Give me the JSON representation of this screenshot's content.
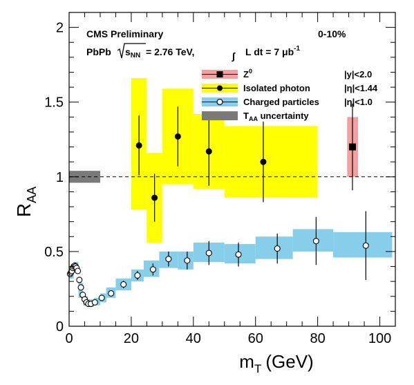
{
  "chart_data": {
    "type": "scatter",
    "title": "",
    "xlabel_main": "m",
    "xlabel_sub": "T",
    "xlabel_unit": "(GeV)",
    "ylabel_main": "R",
    "ylabel_sub": "AA",
    "xlim": [
      0,
      105
    ],
    "ylim": [
      0,
      2.1
    ],
    "x_ticks": [
      "0",
      "20",
      "40",
      "60",
      "80",
      "100"
    ],
    "x_tick_values": [
      0,
      20,
      40,
      60,
      80,
      100
    ],
    "y_ticks": [
      "0",
      "0.5",
      "1",
      "1.5",
      "2"
    ],
    "y_tick_values": [
      0,
      0.5,
      1,
      1.5,
      2
    ],
    "reference_line": 1.0,
    "header": {
      "experiment": "CMS Preliminary",
      "centrality": "0-10%",
      "system": "PbPb",
      "energy_label": "s",
      "energy_sub": "NN",
      "energy_value": " = 2.76 TeV,",
      "lumi_label": "L dt = 7 μb",
      "lumi_sup": "-1"
    },
    "legend_position": "top-right",
    "legend": [
      {
        "name_main": "Z",
        "name_sup": "0",
        "cut": "|y|<2.0",
        "color": "#f08080",
        "marker": "square"
      },
      {
        "name_main": "Isolated photon",
        "cut": "|η|<1.44",
        "color": "#ffff00",
        "marker": "circle"
      },
      {
        "name_main": "Charged particles",
        "cut": "|η|<1.0",
        "color": "#87ceeb",
        "marker": "open-circle"
      },
      {
        "name_main": "T",
        "name_sub": "AA",
        "name_rest": " uncertainty",
        "cut": "",
        "color": "#7a7a7a",
        "marker": "box"
      }
    ],
    "series": [
      {
        "name": "Z0",
        "points": [
          {
            "x": 91.2,
            "y": 1.2,
            "err": 0.29,
            "x0": 89.5,
            "x1": 93.0,
            "sys_lo": 1.0,
            "sys_hi": 1.4
          }
        ],
        "color": "#f08080"
      },
      {
        "name": "Isolated photon",
        "points": [
          {
            "x": 22.5,
            "y": 1.21,
            "err": 0.2,
            "x0": 20,
            "x1": 25,
            "sys_lo": 0.78,
            "sys_hi": 1.66
          },
          {
            "x": 27.5,
            "y": 0.86,
            "err": 0.16,
            "x0": 25,
            "x1": 30,
            "sys_lo": 0.56,
            "sys_hi": 1.16
          },
          {
            "x": 35,
            "y": 1.27,
            "err": 0.2,
            "x0": 30,
            "x1": 40,
            "sys_lo": 0.95,
            "sys_hi": 1.59
          },
          {
            "x": 45,
            "y": 1.17,
            "err": 0.23,
            "x0": 40,
            "x1": 50,
            "sys_lo": 0.92,
            "sys_hi": 1.42
          },
          {
            "x": 62.5,
            "y": 1.1,
            "err": 0.27,
            "x0": 50,
            "x1": 80,
            "sys_lo": 0.86,
            "sys_hi": 1.34
          }
        ],
        "color": "#ffff00"
      },
      {
        "name": "Charged particles",
        "points": [
          {
            "x": 0.3,
            "y": 0.35,
            "err": 0.02
          },
          {
            "x": 0.6,
            "y": 0.36,
            "err": 0.02
          },
          {
            "x": 0.9,
            "y": 0.37,
            "err": 0.02
          },
          {
            "x": 1.2,
            "y": 0.39,
            "err": 0.02
          },
          {
            "x": 1.5,
            "y": 0.4,
            "err": 0.02
          },
          {
            "x": 1.8,
            "y": 0.405,
            "err": 0.02
          },
          {
            "x": 2.1,
            "y": 0.4,
            "err": 0.02
          },
          {
            "x": 2.4,
            "y": 0.39,
            "err": 0.02
          },
          {
            "x": 2.8,
            "y": 0.37,
            "err": 0.02
          },
          {
            "x": 3.3,
            "y": 0.31,
            "err": 0.02
          },
          {
            "x": 3.8,
            "y": 0.26,
            "err": 0.02
          },
          {
            "x": 4.4,
            "y": 0.21,
            "err": 0.02
          },
          {
            "x": 5.0,
            "y": 0.18,
            "err": 0.02
          },
          {
            "x": 5.6,
            "y": 0.16,
            "err": 0.02
          },
          {
            "x": 6.2,
            "y": 0.15,
            "err": 0.02
          },
          {
            "x": 7.0,
            "y": 0.15,
            "err": 0.02
          },
          {
            "x": 8.3,
            "y": 0.16,
            "err": 0.02
          },
          {
            "x": 10.5,
            "y": 0.19,
            "err": 0.02
          },
          {
            "x": 13.5,
            "y": 0.22,
            "err": 0.02
          },
          {
            "x": 17.5,
            "y": 0.28,
            "err": 0.025
          },
          {
            "x": 22,
            "y": 0.34,
            "err": 0.03
          },
          {
            "x": 27,
            "y": 0.38,
            "err": 0.04
          },
          {
            "x": 32,
            "y": 0.45,
            "err": 0.05
          },
          {
            "x": 38,
            "y": 0.44,
            "err": 0.06
          },
          {
            "x": 45,
            "y": 0.49,
            "err": 0.08
          },
          {
            "x": 54.5,
            "y": 0.48,
            "err": 0.08
          },
          {
            "x": 67,
            "y": 0.52,
            "err": 0.1
          },
          {
            "x": 79.5,
            "y": 0.57,
            "err": 0.16
          },
          {
            "x": 95.5,
            "y": 0.54,
            "err": 0.23
          }
        ],
        "sys_band": [
          {
            "x0": 0,
            "x1": 1.5,
            "lo": 0.32,
            "hi": 0.38
          },
          {
            "x0": 1.5,
            "x1": 3,
            "lo": 0.37,
            "hi": 0.43
          },
          {
            "x0": 3,
            "x1": 4.5,
            "lo": 0.19,
            "hi": 0.29
          },
          {
            "x0": 4.5,
            "x1": 6,
            "lo": 0.14,
            "hi": 0.2
          },
          {
            "x0": 6,
            "x1": 8,
            "lo": 0.13,
            "hi": 0.18
          },
          {
            "x0": 8,
            "x1": 10,
            "lo": 0.14,
            "hi": 0.19
          },
          {
            "x0": 10,
            "x1": 12,
            "lo": 0.16,
            "hi": 0.22
          },
          {
            "x0": 12,
            "x1": 15,
            "lo": 0.19,
            "hi": 0.26
          },
          {
            "x0": 15,
            "x1": 20,
            "lo": 0.24,
            "hi": 0.32
          },
          {
            "x0": 20,
            "x1": 24,
            "lo": 0.3,
            "hi": 0.38
          },
          {
            "x0": 24,
            "x1": 29,
            "lo": 0.33,
            "hi": 0.44
          },
          {
            "x0": 29,
            "x1": 35,
            "lo": 0.39,
            "hi": 0.5
          },
          {
            "x0": 35,
            "x1": 40,
            "lo": 0.38,
            "hi": 0.5
          },
          {
            "x0": 40,
            "x1": 50,
            "lo": 0.43,
            "hi": 0.56
          },
          {
            "x0": 50,
            "x1": 60,
            "lo": 0.42,
            "hi": 0.55
          },
          {
            "x0": 60,
            "x1": 72,
            "lo": 0.45,
            "hi": 0.6
          },
          {
            "x0": 72,
            "x1": 85,
            "lo": 0.5,
            "hi": 0.65
          },
          {
            "x0": 85,
            "x1": 104,
            "lo": 0.46,
            "hi": 0.63
          }
        ],
        "color": "#87ceeb"
      }
    ],
    "taa_uncertainty": {
      "x0": 0,
      "x1": 10,
      "lo": 0.96,
      "hi": 1.04,
      "color": "#7a7a7a"
    }
  }
}
